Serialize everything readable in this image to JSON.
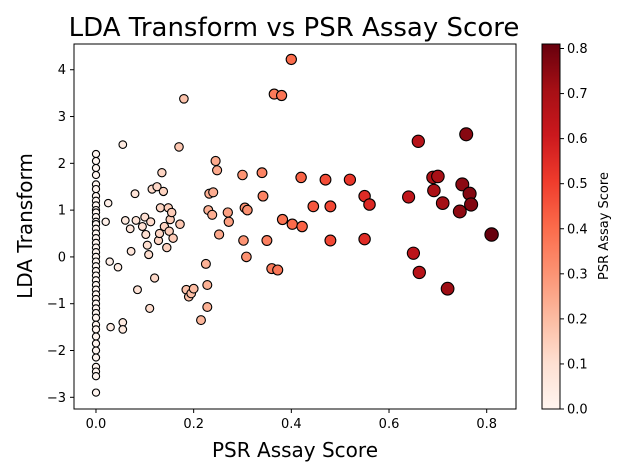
{
  "chart_data": {
    "type": "scatter",
    "title": "LDA Transform vs PSR Assay Score",
    "xlabel": "PSR Assay Score",
    "ylabel": "LDA Transform",
    "xlim": [
      -0.045,
      0.86
    ],
    "ylim": [
      -3.25,
      4.55
    ],
    "xticks": [
      0.0,
      0.2,
      0.4,
      0.6,
      0.8
    ],
    "xtick_labels": [
      "0.0",
      "0.2",
      "0.4",
      "0.6",
      "0.8"
    ],
    "yticks": [
      -3,
      -2,
      -1,
      0,
      1,
      2,
      3,
      4
    ],
    "ytick_labels": [
      "−3",
      "−2",
      "−1",
      "0",
      "1",
      "2",
      "3",
      "4"
    ],
    "grid": false,
    "colormap": "Reds",
    "color_variable": "PSR Assay Score",
    "colorbar": {
      "label": "PSR Assay Score",
      "range": [
        0.0,
        0.81
      ],
      "ticks": [
        0.0,
        0.1,
        0.2,
        0.3,
        0.4,
        0.5,
        0.6,
        0.7,
        0.8
      ],
      "tick_labels": [
        "0.0",
        "0.1",
        "0.2",
        "0.3",
        "0.4",
        "0.5",
        "0.6",
        "0.7",
        "0.8"
      ]
    },
    "marker_size_encodes": "PSR Assay Score",
    "points": [
      [
        0.0,
        2.2
      ],
      [
        0.0,
        2.05
      ],
      [
        0.0,
        1.9
      ],
      [
        0.0,
        1.75
      ],
      [
        0.0,
        1.55
      ],
      [
        0.0,
        1.45
      ],
      [
        0.0,
        1.3
      ],
      [
        0.0,
        1.2
      ],
      [
        0.0,
        1.1
      ],
      [
        0.0,
        1.0
      ],
      [
        0.0,
        0.95
      ],
      [
        0.0,
        0.85
      ],
      [
        0.0,
        0.75
      ],
      [
        0.0,
        0.7
      ],
      [
        0.0,
        0.6
      ],
      [
        0.0,
        0.5
      ],
      [
        0.0,
        0.4
      ],
      [
        0.0,
        0.3
      ],
      [
        0.0,
        0.2
      ],
      [
        0.0,
        0.1
      ],
      [
        0.0,
        0.0
      ],
      [
        0.0,
        -0.1
      ],
      [
        0.0,
        -0.2
      ],
      [
        0.0,
        -0.3
      ],
      [
        0.0,
        -0.4
      ],
      [
        0.0,
        -0.5
      ],
      [
        0.0,
        -0.6
      ],
      [
        0.0,
        -0.7
      ],
      [
        0.0,
        -0.8
      ],
      [
        0.0,
        -0.9
      ],
      [
        0.0,
        -1.0
      ],
      [
        0.0,
        -1.1
      ],
      [
        0.0,
        -1.2
      ],
      [
        0.0,
        -1.3
      ],
      [
        0.0,
        -1.45
      ],
      [
        0.0,
        -1.55
      ],
      [
        0.0,
        -1.7
      ],
      [
        0.0,
        -1.85
      ],
      [
        0.0,
        -2.0
      ],
      [
        0.0,
        -2.15
      ],
      [
        0.0,
        -2.35
      ],
      [
        0.0,
        -2.45
      ],
      [
        0.0,
        -2.55
      ],
      [
        0.0,
        -2.9
      ],
      [
        0.02,
        0.75
      ],
      [
        0.025,
        1.15
      ],
      [
        0.028,
        -0.1
      ],
      [
        0.03,
        -1.5
      ],
      [
        0.045,
        -0.22
      ],
      [
        0.055,
        2.4
      ],
      [
        0.055,
        -1.4
      ],
      [
        0.055,
        -1.55
      ],
      [
        0.06,
        0.78
      ],
      [
        0.07,
        0.6
      ],
      [
        0.072,
        0.12
      ],
      [
        0.08,
        1.35
      ],
      [
        0.082,
        0.78
      ],
      [
        0.085,
        -0.7
      ],
      [
        0.095,
        0.65
      ],
      [
        0.1,
        0.85
      ],
      [
        0.102,
        0.48
      ],
      [
        0.105,
        0.25
      ],
      [
        0.108,
        0.05
      ],
      [
        0.11,
        -1.1
      ],
      [
        0.112,
        0.75
      ],
      [
        0.115,
        1.45
      ],
      [
        0.12,
        -0.45
      ],
      [
        0.125,
        1.5
      ],
      [
        0.128,
        0.35
      ],
      [
        0.13,
        0.5
      ],
      [
        0.132,
        1.05
      ],
      [
        0.135,
        1.8
      ],
      [
        0.138,
        1.4
      ],
      [
        0.14,
        0.65
      ],
      [
        0.145,
        0.2
      ],
      [
        0.148,
        1.05
      ],
      [
        0.15,
        0.55
      ],
      [
        0.152,
        0.8
      ],
      [
        0.155,
        0.95
      ],
      [
        0.158,
        0.4
      ],
      [
        0.17,
        2.35
      ],
      [
        0.172,
        0.7
      ],
      [
        0.18,
        3.38
      ],
      [
        0.185,
        -0.7
      ],
      [
        0.19,
        -0.85
      ],
      [
        0.195,
        -0.78
      ],
      [
        0.2,
        -0.68
      ],
      [
        0.215,
        -1.35
      ],
      [
        0.225,
        -0.15
      ],
      [
        0.228,
        -0.6
      ],
      [
        0.228,
        -1.07
      ],
      [
        0.23,
        1.0
      ],
      [
        0.232,
        1.35
      ],
      [
        0.238,
        0.9
      ],
      [
        0.24,
        1.38
      ],
      [
        0.245,
        2.05
      ],
      [
        0.248,
        1.85
      ],
      [
        0.252,
        0.48
      ],
      [
        0.27,
        0.95
      ],
      [
        0.272,
        0.75
      ],
      [
        0.3,
        1.75
      ],
      [
        0.302,
        0.35
      ],
      [
        0.305,
        1.05
      ],
      [
        0.308,
        0.0
      ],
      [
        0.31,
        1.0
      ],
      [
        0.34,
        1.8
      ],
      [
        0.342,
        1.3
      ],
      [
        0.35,
        0.35
      ],
      [
        0.36,
        -0.25
      ],
      [
        0.365,
        3.48
      ],
      [
        0.372,
        -0.28
      ],
      [
        0.38,
        3.45
      ],
      [
        0.382,
        0.8
      ],
      [
        0.4,
        4.22
      ],
      [
        0.402,
        0.7
      ],
      [
        0.42,
        1.7
      ],
      [
        0.422,
        0.65
      ],
      [
        0.445,
        1.08
      ],
      [
        0.47,
        1.65
      ],
      [
        0.48,
        1.08
      ],
      [
        0.48,
        0.35
      ],
      [
        0.52,
        1.65
      ],
      [
        0.55,
        1.3
      ],
      [
        0.55,
        0.38
      ],
      [
        0.56,
        1.12
      ],
      [
        0.64,
        1.28
      ],
      [
        0.65,
        0.08
      ],
      [
        0.66,
        2.47
      ],
      [
        0.662,
        -0.33
      ],
      [
        0.69,
        1.7
      ],
      [
        0.692,
        1.42
      ],
      [
        0.7,
        1.72
      ],
      [
        0.71,
        1.15
      ],
      [
        0.72,
        -0.68
      ],
      [
        0.745,
        0.97
      ],
      [
        0.75,
        1.55
      ],
      [
        0.758,
        2.62
      ],
      [
        0.765,
        1.35
      ],
      [
        0.768,
        1.12
      ],
      [
        0.81,
        0.48
      ]
    ]
  }
}
